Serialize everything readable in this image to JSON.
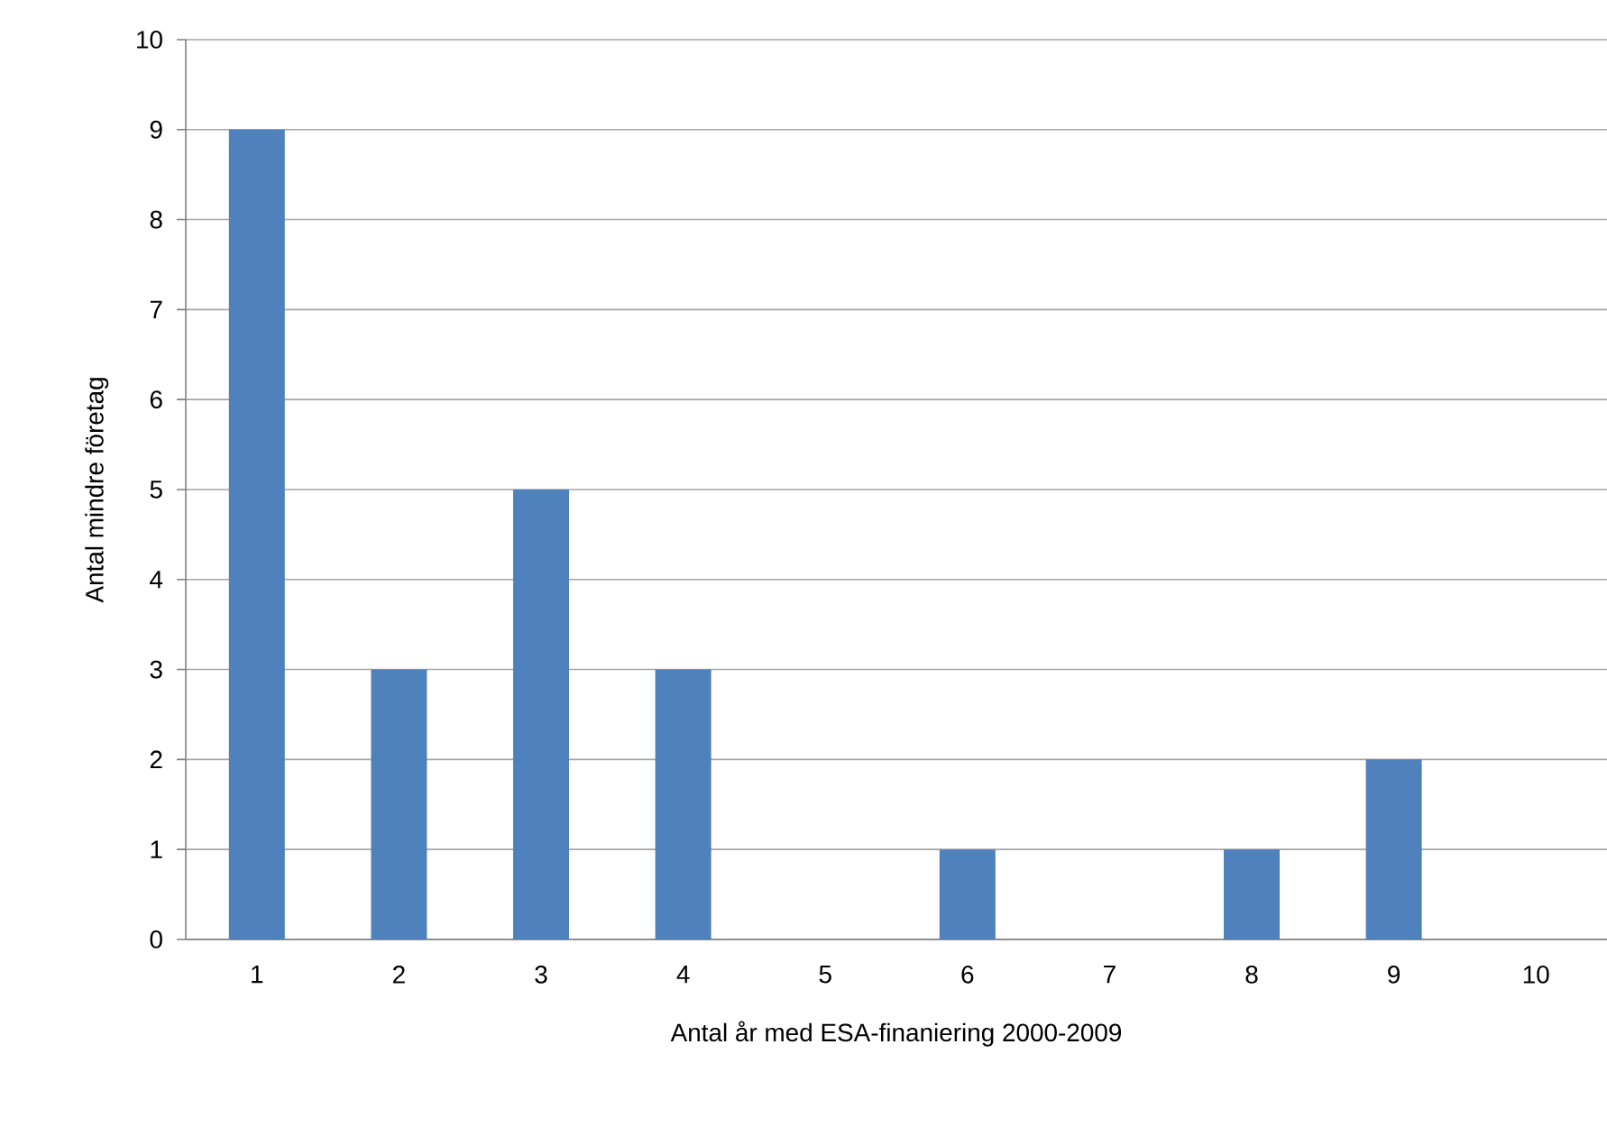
{
  "chart_data": {
    "type": "bar",
    "xlabel": "Antal år med ESA-finaniering 2000-2009",
    "ylabel": "Antal mindre företag",
    "categories": [
      "1",
      "2",
      "3",
      "4",
      "5",
      "6",
      "7",
      "8",
      "9",
      "10"
    ],
    "values": [
      9,
      3,
      5,
      3,
      0,
      1,
      0,
      1,
      2,
      0
    ],
    "color": "#4f81bd",
    "ylim": [
      0,
      10
    ],
    "yticks": [
      0,
      1,
      2,
      3,
      4,
      5,
      6,
      7,
      8,
      9,
      10
    ],
    "grid": "y"
  }
}
